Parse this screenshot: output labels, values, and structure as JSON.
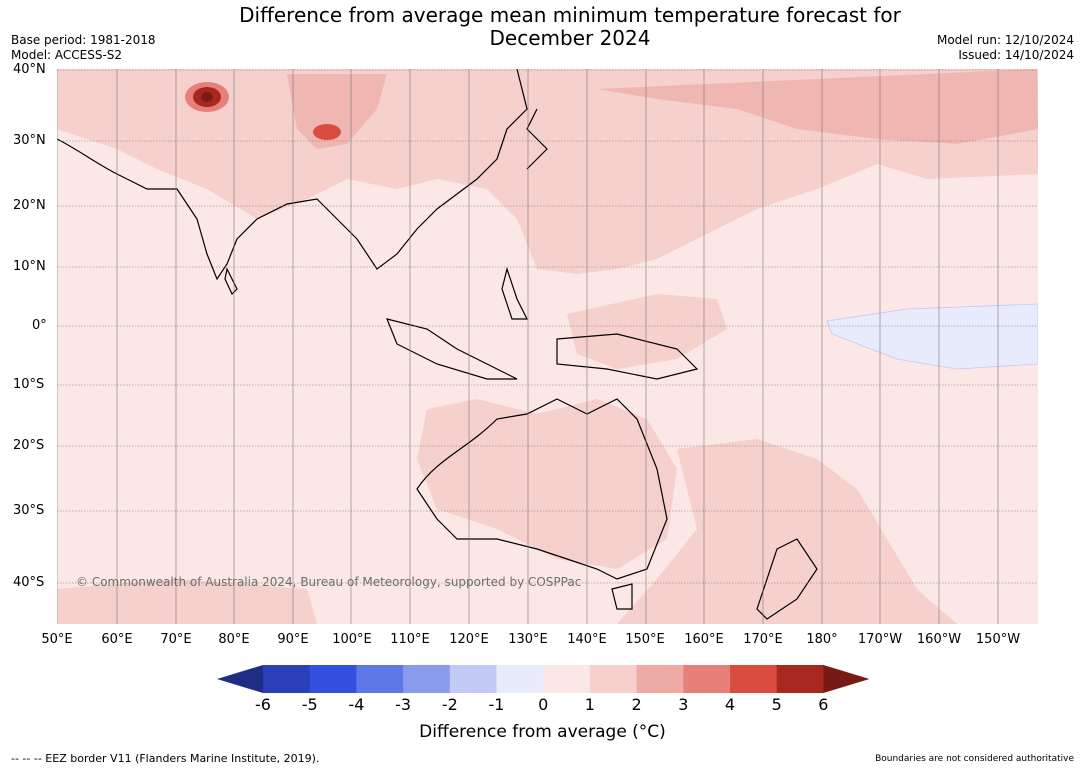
{
  "title_line1": "Difference from average mean minimum temperature forecast for",
  "title_line2": "December 2024",
  "base_period": "Base period: 1981-2018",
  "model": "Model: ACCESS-S2",
  "model_run": "Model run: 12/10/2024",
  "issued": "Issued: 14/10/2024",
  "copyright": "© Commonwealth of Australia 2024, Bureau of Meteorology, supported by COSPPac",
  "lat_labels": [
    "40°N",
    "30°N",
    "20°N",
    "10°N",
    "0°",
    "10°S",
    "20°S",
    "30°S",
    "40°S"
  ],
  "lon_labels": [
    "50°E",
    "60°E",
    "70°E",
    "80°E",
    "90°E",
    "100°E",
    "110°E",
    "120°E",
    "130°E",
    "140°E",
    "150°E",
    "160°E",
    "170°E",
    "180°",
    "170°W",
    "160°W",
    "150°W"
  ],
  "colorbar": {
    "ticks": [
      "-6",
      "-5",
      "-4",
      "-3",
      "-2",
      "-1",
      "0",
      "1",
      "2",
      "3",
      "4",
      "5",
      "6"
    ],
    "colors": [
      "#1f2e85",
      "#2b3fb8",
      "#3350e0",
      "#5f78e8",
      "#8b9bec",
      "#c2c9f4",
      "#e8ebfb",
      "#fbe7e5",
      "#f5d0cd",
      "#eeaba6",
      "#e8807a",
      "#da4b40",
      "#a8281f",
      "#7a1a14"
    ],
    "label": "Difference from average (°C)"
  },
  "footer_left": "--  --  -- EEZ border V11 (Flanders Marine Institute, 2019).",
  "footer_right": "Boundaries are not considered authoritative"
}
